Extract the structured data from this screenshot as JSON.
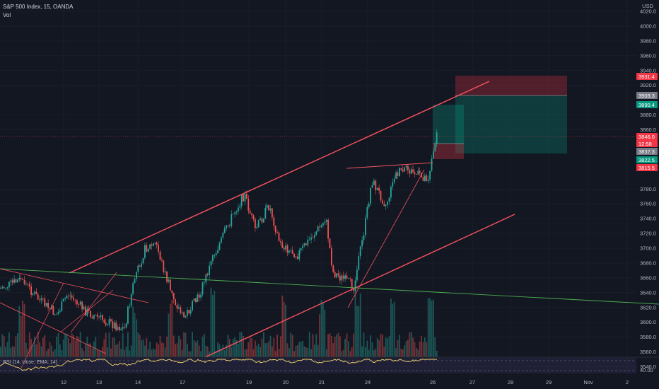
{
  "legend": {
    "symbol": "S&P 500 Index, 15, OANDA",
    "vol": "Vol"
  },
  "rsi_label": "RSI (14, close, EMA, 14)",
  "axis": {
    "currency": "USD",
    "price_labels": [
      "4020.0",
      "4000.0",
      "3980.0",
      "3960.0",
      "3940.0",
      "3920.0",
      "3880.0",
      "3860.0",
      "3780.0",
      "3760.0",
      "3740.0",
      "3720.0",
      "3700.0",
      "3680.0",
      "3660.0",
      "3640.0",
      "3620.0",
      "3600.0",
      "3580.0",
      "3560.0",
      "3540.0"
    ],
    "rsi_label": "40.00",
    "time_labels": [
      "12",
      "13",
      "14",
      "17",
      "19",
      "20",
      "21",
      "24",
      "26",
      "27",
      "28",
      "29",
      "Nov",
      "2"
    ]
  },
  "price_tags": [
    {
      "text": "3931.4",
      "color": "#f23645"
    },
    {
      "text": "3903.3",
      "color": "#787b86"
    },
    {
      "text": "3890.4",
      "color": "#089981"
    },
    {
      "text": "3846.0",
      "color": "#f23645"
    },
    {
      "text": "12:58",
      "color": "#f23645"
    },
    {
      "text": "3837.3",
      "color": "#787b86"
    },
    {
      "text": "3822.5",
      "color": "#089981"
    },
    {
      "text": "3815.5",
      "color": "#f23645"
    }
  ],
  "colors": {
    "background": "#131722",
    "up": "#26a69a",
    "down": "#ef5350",
    "trendline": "#f7525f",
    "green_line": "#4caf50",
    "rsi": "#f5d76e",
    "rsi_band": "#7e57c2"
  }
}
